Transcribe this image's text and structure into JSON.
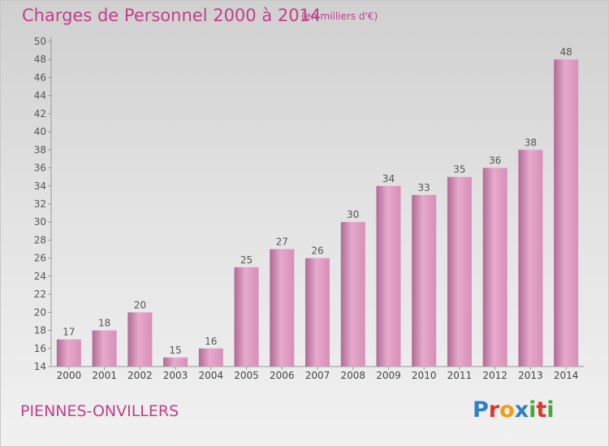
{
  "header": {
    "title": "Charges de Personnel 2000 à 2014",
    "subtitle": "(en milliers d'€)"
  },
  "footer": {
    "commune": "PIENNES-ONVILLERS",
    "logo_text": "Proxiti",
    "logo_colors": [
      "#2f7ec9",
      "#e1342c",
      "#f39c12",
      "#2f7ec9",
      "#47a93b",
      "#e1342c",
      "#47a93b"
    ]
  },
  "chart_data": {
    "type": "bar",
    "categories": [
      "2000",
      "2001",
      "2002",
      "2003",
      "2004",
      "2005",
      "2006",
      "2007",
      "2008",
      "2009",
      "2010",
      "2011",
      "2012",
      "2013",
      "2014"
    ],
    "values": [
      17,
      18,
      20,
      15,
      16,
      25,
      27,
      26,
      30,
      34,
      33,
      35,
      36,
      38,
      48
    ],
    "ylim": [
      14,
      50
    ],
    "yticks": [
      14,
      16,
      18,
      20,
      22,
      24,
      26,
      28,
      30,
      32,
      34,
      36,
      38,
      40,
      42,
      44,
      46,
      48,
      50
    ],
    "grid": false,
    "bar_color": "#d88fb8",
    "bar_color_light": "#e6a9cc",
    "bar_color_dark": "#b06a95",
    "text_color": "#c0408a"
  }
}
